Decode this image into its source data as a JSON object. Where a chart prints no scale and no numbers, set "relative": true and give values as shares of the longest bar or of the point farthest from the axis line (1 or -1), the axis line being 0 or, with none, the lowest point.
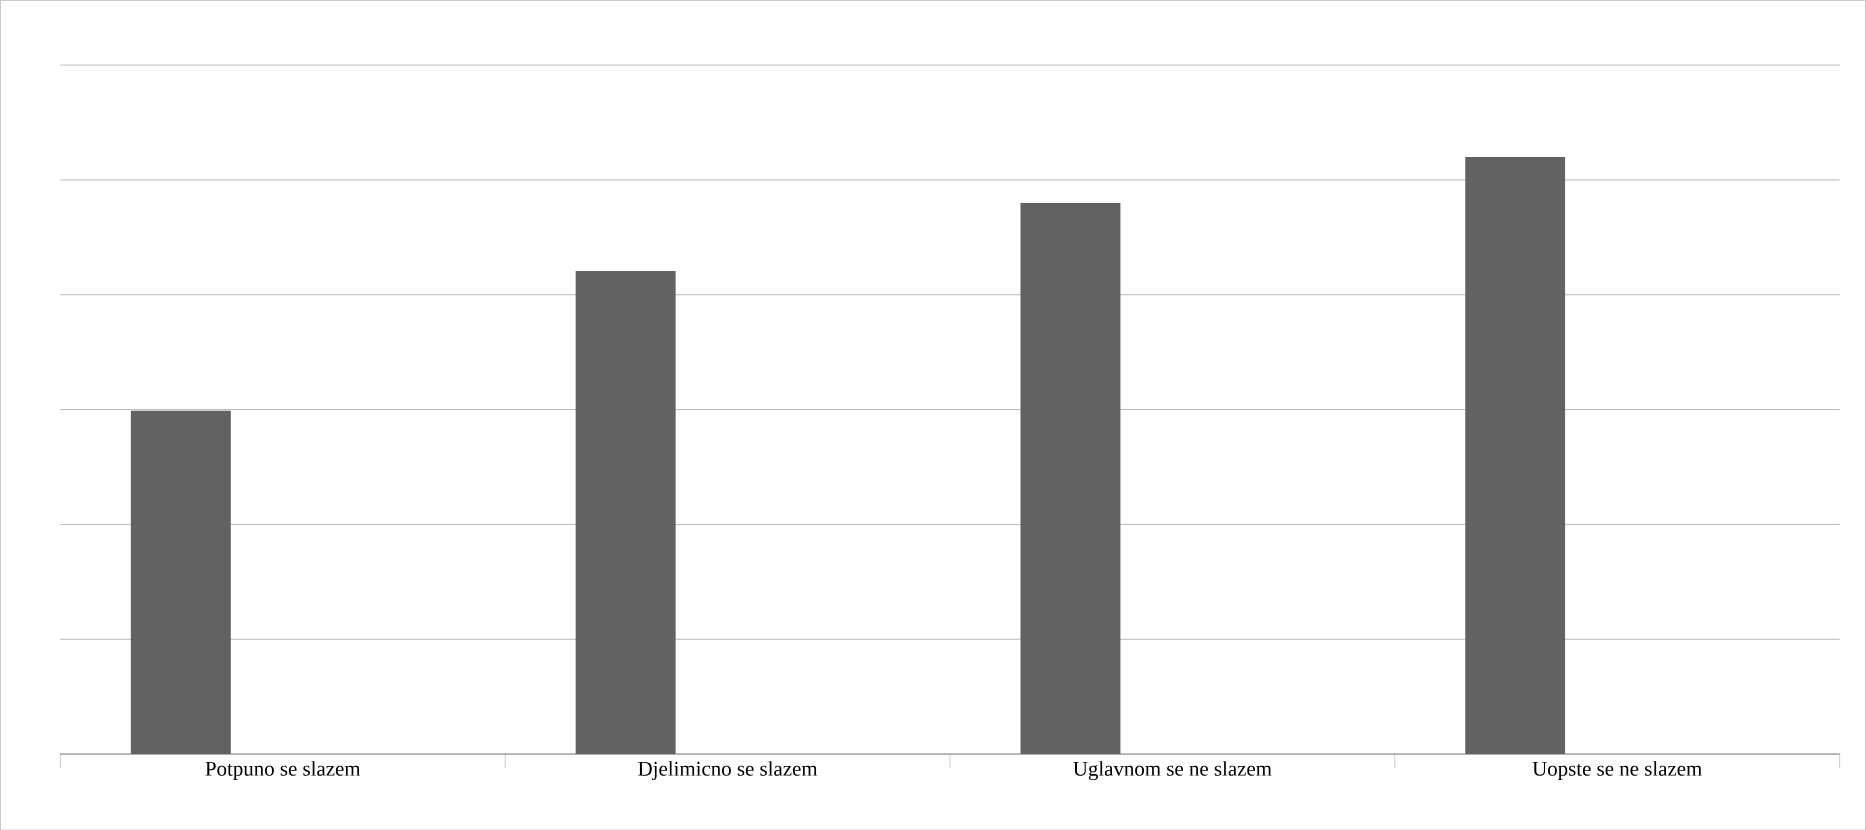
{
  "chart_data": {
    "type": "bar",
    "relative": true,
    "categories": [
      "Potpuno se slazem",
      "Djelimicno  se slazem",
      "Uglavnom se ne slazem",
      "Uopste se ne slazem"
    ],
    "values": [
      0.575,
      0.809,
      0.923,
      1
    ],
    "color": "#626262",
    "grid": "y"
  }
}
